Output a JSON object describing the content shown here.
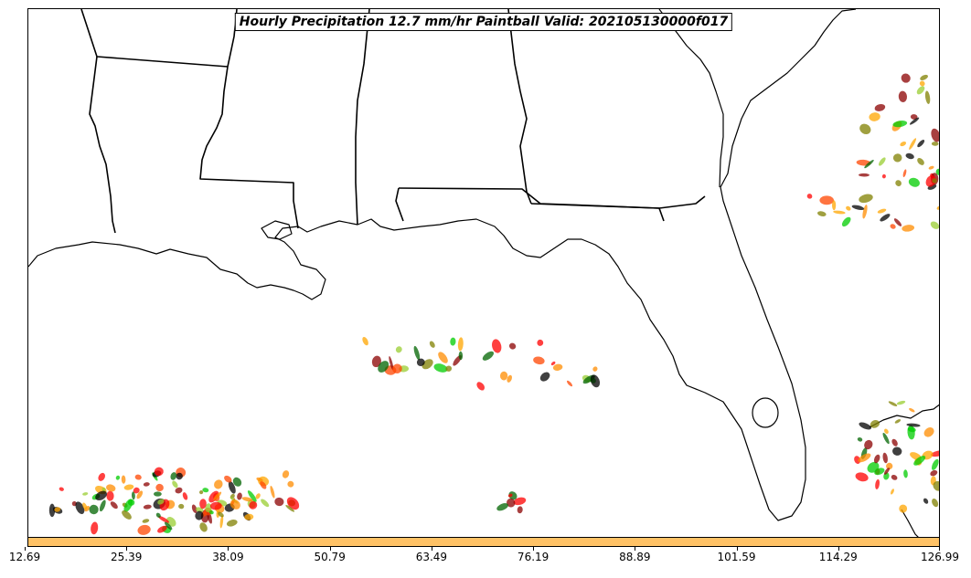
{
  "title": "Hourly Precipitation 12.7 mm/hr Paintball Valid: 202105130000f017",
  "colorbar": {
    "color": "#ffc266",
    "tick_labels": [
      "12.69",
      "25.39",
      "38.09",
      "50.79",
      "63.49",
      "76.19",
      "88.89",
      "101.59",
      "114.29",
      "126.99"
    ]
  },
  "paintball_colors": [
    "#ff0000",
    "#ff8c00",
    "#ffa500",
    "#00cc00",
    "#006400",
    "#8b0000",
    "#808000",
    "#000000",
    "#ff4500",
    "#9acd32"
  ],
  "map_features": [
    "state-borders",
    "coastline",
    "paintball-blobs"
  ]
}
